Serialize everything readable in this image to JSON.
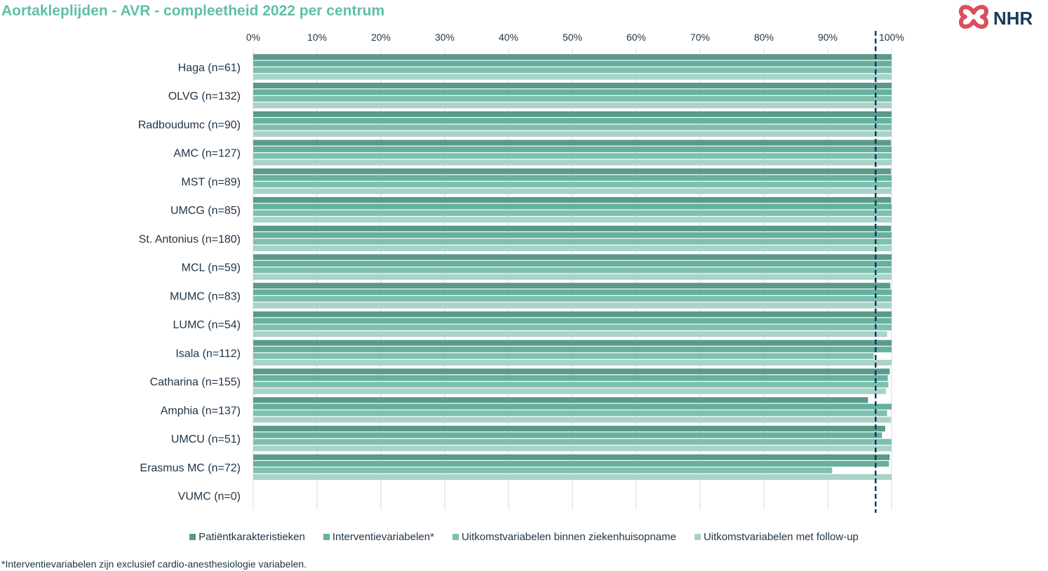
{
  "header": {
    "title": "Aortakleplijden - AVR - compleetheid 2022 per centrum",
    "logo_text": "NHR"
  },
  "footnote": "*Interventievariabelen zijn exclusief cardio-anesthesiologie variabelen.",
  "colors": {
    "title": "#5fbfa8",
    "axis_text": "#1f3344",
    "reference_line": "#0e3b5a",
    "logo_red": "#d94f5c",
    "logo_navy": "#1a3a5c"
  },
  "chart_data": {
    "type": "bar",
    "orientation": "horizontal",
    "title": "",
    "xlabel": "",
    "ylabel": "",
    "xlim": [
      0,
      100
    ],
    "x_ticks": [
      "0%",
      "10%",
      "20%",
      "30%",
      "40%",
      "50%",
      "60%",
      "70%",
      "80%",
      "90%",
      "100%"
    ],
    "x_axis_position": "top",
    "grid": "vertical",
    "reference_line": {
      "value": 97.5,
      "style": "dashed"
    },
    "legend_position": "bottom",
    "categories": [
      "Haga (n=61)",
      "OLVG (n=132)",
      "Radboudumc (n=90)",
      "AMC (n=127)",
      "MST (n=89)",
      "UMCG (n=85)",
      "St. Antonius (n=180)",
      "MCL (n=59)",
      "MUMC (n=83)",
      "LUMC (n=54)",
      "Isala (n=112)",
      "Catharina (n=155)",
      "Amphia (n=137)",
      "UMCU (n=51)",
      "Erasmus MC (n=72)",
      "VUMC (n=0)"
    ],
    "series": [
      {
        "name": "Patiëntkarakteristieken",
        "color": "#5a9a8a",
        "values": [
          100,
          100,
          100,
          99.9,
          99.9,
          99.9,
          99.9,
          100,
          99.8,
          100,
          100,
          99.7,
          96.3,
          99.0,
          99.7,
          null
        ]
      },
      {
        "name": "Interventievariabelen*",
        "color": "#66b0a0",
        "values": [
          100,
          100,
          100,
          100,
          100,
          100,
          100,
          100,
          100,
          100,
          100,
          99.4,
          100,
          98.5,
          99.6,
          null
        ]
      },
      {
        "name": "Uitkomstvariabelen binnen ziekenhuisopname",
        "color": "#7ec0b0",
        "values": [
          100,
          100,
          100,
          100,
          100,
          100,
          100,
          100,
          100,
          100,
          97.2,
          99.5,
          99.3,
          100,
          90.7,
          null
        ]
      },
      {
        "name": "Uitkomstvariabelen met follow-up",
        "color": "#a8d3c9",
        "values": [
          100,
          100,
          100,
          100,
          100,
          100,
          100,
          100,
          100,
          99.3,
          100,
          99.1,
          99.9,
          100,
          100,
          null
        ]
      }
    ]
  }
}
